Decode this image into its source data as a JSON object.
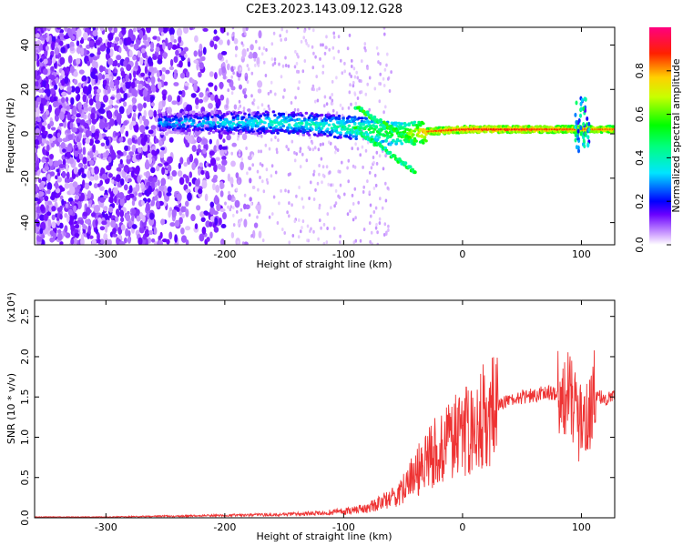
{
  "chart_data": [
    {
      "type": "heatmap",
      "title": "C2E3.2023.143.09.12.G28",
      "xlabel": "Height of straight line (km)",
      "ylabel": "Frequency (Hz)",
      "xlim": [
        -360,
        128
      ],
      "ylim": [
        -50,
        48
      ],
      "x_ticks": [
        -300,
        -200,
        -100,
        0,
        100
      ],
      "y_ticks": [
        -40,
        -20,
        0,
        20,
        40
      ],
      "colorbar": {
        "label": "Normalized spectral amplitude",
        "range": [
          0,
          1
        ],
        "ticks": [
          0.0,
          0.2,
          0.4,
          0.6,
          0.8
        ]
      },
      "ridge": {
        "description_points_x": [
          -250,
          -200,
          -150,
          -120,
          -100,
          -80,
          -60,
          -45,
          -30,
          0,
          50,
          100,
          128
        ],
        "frequency_hz": [
          5,
          5,
          5,
          4,
          3,
          2,
          0,
          0,
          1,
          2,
          2,
          2,
          2
        ],
        "amplitude": [
          0.35,
          0.4,
          0.45,
          0.45,
          0.5,
          0.55,
          0.6,
          0.7,
          0.85,
          0.9,
          0.9,
          0.85,
          0.85
        ]
      }
    },
    {
      "type": "line",
      "xlabel": "Height of straight line (km)",
      "ylabel": "SNR (10 * v/v)",
      "y_multiplier": "(x10⁴)",
      "xlim": [
        -360,
        128
      ],
      "ylim": [
        0,
        2.7
      ],
      "x_ticks": [
        -300,
        -200,
        -100,
        0,
        100
      ],
      "y_ticks": [
        0.0,
        0.5,
        1.0,
        1.5,
        2.0,
        2.5
      ],
      "color": "#ee3333",
      "series": [
        {
          "x": [
            -360,
            -300,
            -250,
            -200,
            -150,
            -120,
            -100,
            -80,
            -60,
            -50,
            -40,
            -30,
            -20,
            -10,
            0,
            10,
            20,
            30,
            40,
            50,
            60,
            70,
            80,
            90,
            95,
            100,
            105,
            110,
            115,
            120,
            128
          ],
          "values": [
            0.01,
            0.01,
            0.02,
            0.03,
            0.04,
            0.06,
            0.08,
            0.12,
            0.25,
            0.35,
            0.55,
            0.7,
            0.85,
            0.95,
            1.05,
            1.15,
            1.3,
            1.4,
            1.45,
            1.5,
            1.52,
            1.55,
            1.55,
            1.5,
            1.4,
            1.1,
            1.2,
            1.55,
            1.5,
            1.48,
            1.5
          ]
        }
      ]
    }
  ]
}
